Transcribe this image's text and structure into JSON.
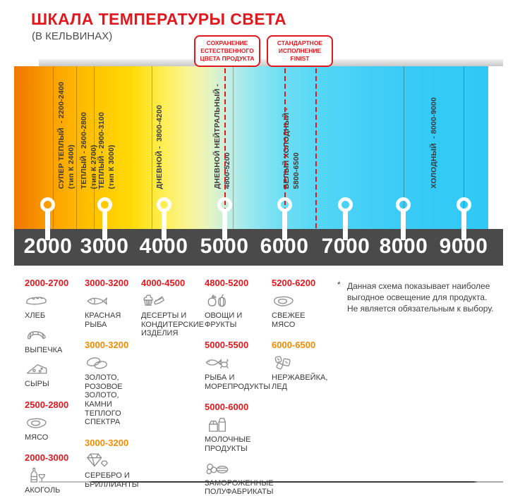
{
  "palette": {
    "red": "#e0191f",
    "orange": "#f08c00",
    "dark_text": "#3a3a3a",
    "axis_bar": "#4a4a4a",
    "icon_gray": "#8f8f8f"
  },
  "header": {
    "title": "ШКАЛА ТЕМПЕРАТУРЫ СВЕТА",
    "subtitle": "(В КЕЛЬВИНАХ)"
  },
  "callouts": [
    {
      "text": "СОХРАНЕНИЕ\nЕСТЕСТВЕННОГО\nЦВЕТА ПРОДУКТА",
      "legs_pct": [
        44.35
      ]
    },
    {
      "text": "СТАНДАРТНОЕ\nИСПОЛНЕНИЕ\nFINIST",
      "legs_pct": [
        57.0,
        63.55
      ]
    }
  ],
  "scale": {
    "unit": "K",
    "range_k": [
      2000,
      9000
    ],
    "ticks": [
      {
        "label": "2000",
        "pct": 7.14
      },
      {
        "label": "3000",
        "pct": 19.05
      },
      {
        "label": "4000",
        "pct": 31.55
      },
      {
        "label": "5000",
        "pct": 44.35
      },
      {
        "label": "6000",
        "pct": 57.0
      },
      {
        "label": "7000",
        "pct": 69.94
      },
      {
        "label": "8000",
        "pct": 82.14
      },
      {
        "label": "9000",
        "pct": 94.8
      }
    ],
    "guide_lines_pct": [
      8.2,
      13.1,
      16.8,
      29.0,
      46.1,
      82.14,
      94.8
    ],
    "segments": [
      {
        "line1": "СУПЕР ТЕПЛЫЙ  - 2200-2400",
        "line2": "(тип К 2400)",
        "pct": 8.9
      },
      {
        "line1": "ТЕПЛЫЙ - 2600-2800",
        "line2": "(тип К 2700)",
        "pct": 13.7
      },
      {
        "line1": "ТЕПЛЫЙ - 2900-3100",
        "line2": "(тип К 3000)",
        "pct": 17.4
      },
      {
        "line1": "ДНЕВНОЙ -  3800-4200",
        "line2": "",
        "pct": 29.6
      },
      {
        "line1": "ДНЕВНОЙ НЕЙТРАЛЬНЫЙ -",
        "line2": "4800-5200",
        "pct": 41.8
      },
      {
        "line1": "БЕЛЫЙ ХОЛОДНЫЙ -",
        "line2": "5800-6500",
        "pct": 56.4
      },
      {
        "line1": "ХОЛОДНЫЙ  - 8000-9000",
        "line2": "",
        "pct": 87.5
      }
    ],
    "gradient_stops": [
      {
        "pct": 0,
        "color": "#f07800"
      },
      {
        "pct": 4,
        "color": "#f58a00"
      },
      {
        "pct": 7,
        "color": "#fa9d00"
      },
      {
        "pct": 13,
        "color": "#ffb700"
      },
      {
        "pct": 19,
        "color": "#ffca00"
      },
      {
        "pct": 25,
        "color": "#ffdb08"
      },
      {
        "pct": 31,
        "color": "#ffee4e"
      },
      {
        "pct": 36,
        "color": "#faf48d"
      },
      {
        "pct": 40,
        "color": "#edf4b6"
      },
      {
        "pct": 43,
        "color": "#d7f1d0"
      },
      {
        "pct": 45.5,
        "color": "#bfeee3"
      },
      {
        "pct": 49,
        "color": "#9fe9ee"
      },
      {
        "pct": 53,
        "color": "#82e3f2"
      },
      {
        "pct": 57,
        "color": "#6cdef4"
      },
      {
        "pct": 65,
        "color": "#53d6f5"
      },
      {
        "pct": 73,
        "color": "#45d0f6"
      },
      {
        "pct": 83,
        "color": "#38cbf6"
      },
      {
        "pct": 100,
        "color": "#2fc9f6"
      }
    ]
  },
  "products": {
    "columns": [
      {
        "groups": [
          {
            "range": "2000-2700",
            "color": "red",
            "items": [
              {
                "icon": "bread-icon",
                "label": "ХЛЕБ"
              },
              {
                "icon": "croissant-icon",
                "label": "ВЫПЕЧКА"
              },
              {
                "icon": "cheese-icon",
                "label": "СЫРЫ"
              }
            ]
          },
          {
            "range": "2500-2800",
            "color": "red",
            "items": [
              {
                "icon": "meat-icon",
                "label": "МЯСО"
              }
            ]
          },
          {
            "range": "2000-3000",
            "color": "red",
            "items": [
              {
                "icon": "wine-bottle-icon",
                "label": "АКОГОЛЬ"
              }
            ]
          }
        ]
      },
      {
        "groups": [
          {
            "range": "3000-3200",
            "color": "red",
            "items": [
              {
                "icon": "fish-icon",
                "label": "КРАСНАЯ\nРЫБА"
              }
            ]
          },
          {
            "range": "3000-3200",
            "color": "orange",
            "items": [
              {
                "icon": "rings-icon",
                "label": "ЗОЛОТО,\nРОЗОВОЕ ЗОЛОТО,\nКАМНИ ТЕПЛОГО\nСПЕКТРА"
              }
            ]
          },
          {
            "range": "3000-3200",
            "color": "orange",
            "items": [
              {
                "icon": "diamond-icon",
                "label": "СЕРЕБРО И\nБРИЛЛИАНТЫ"
              }
            ]
          }
        ]
      },
      {
        "groups": [
          {
            "range": "4000-4500",
            "color": "red",
            "items": [
              {
                "icon": "dessert-icon",
                "label": "ДЕСЕРТЫ И\nКОНДИТЕРСКИЕ\nИЗДЕЛИЯ"
              }
            ]
          }
        ]
      },
      {
        "groups": [
          {
            "range": "4800-5200",
            "color": "red",
            "items": [
              {
                "icon": "fruits-icon",
                "label": "ОВОЩИ И\nФРУКТЫ"
              }
            ]
          },
          {
            "range": "5000-5500",
            "color": "red",
            "items": [
              {
                "icon": "seafood-icon",
                "label": "РЫБА И\nМОРЕПРОДУКТЫ"
              }
            ]
          },
          {
            "range": "5000-6000",
            "color": "red",
            "items": [
              {
                "icon": "milk-icon",
                "label": "МОЛОЧНЫЕ ПРОДУКТЫ"
              },
              {
                "icon": "frozen-food-icon",
                "label": "ЗАМОРОЖЕННЫЕ\nПОЛУФАБРИКАТЫ"
              }
            ]
          }
        ]
      },
      {
        "groups": [
          {
            "range": "5200-6200",
            "color": "red",
            "items": [
              {
                "icon": "steak-icon",
                "label": "СВЕЖЕЕ\nМЯСО"
              }
            ]
          },
          {
            "range": "6000-6500",
            "color": "orange",
            "items": [
              {
                "icon": "ice-cubes-icon",
                "label": "НЕРЖАВЕЙКА,\nЛЕД"
              }
            ]
          }
        ]
      }
    ]
  },
  "note": {
    "mark": "*",
    "text": "Данная схема показывает наиболее\nвыгодное освещение для продукта.\nНе является обязательным к выбору."
  }
}
